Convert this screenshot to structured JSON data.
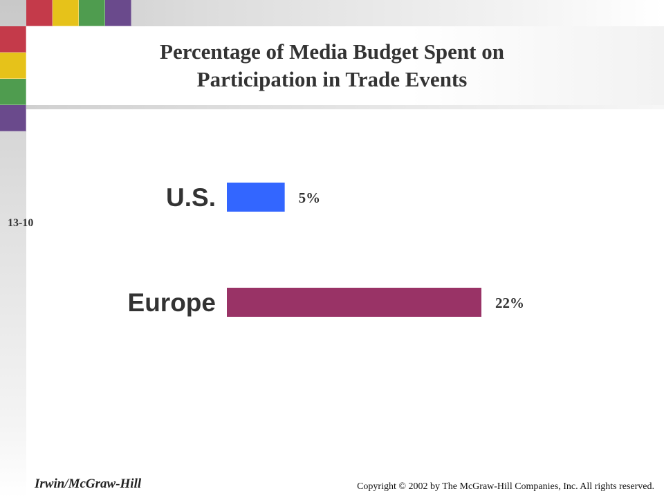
{
  "slide": {
    "title_line1": "Percentage of Media Budget Spent on",
    "title_line2": "Participation in Trade Events",
    "number": "13-10",
    "footer_left": "Irwin/McGraw-Hill",
    "footer_right": "Copyright © 2002 by The McGraw-Hill Companies, Inc.  All rights reserved."
  },
  "colors": {
    "accent_red": "#c43a4a",
    "accent_yellow": "#e6c21a",
    "accent_green": "#4f9c4f",
    "accent_purple": "#6a4a8c",
    "us_bar": "#3366ff",
    "europe_bar": "#993366"
  },
  "chart_data": {
    "type": "bar",
    "orientation": "horizontal",
    "title": "Percentage of Media Budget Spent on Participation in Trade Events",
    "categories": [
      "U.S.",
      "Europe"
    ],
    "values": [
      5,
      22
    ],
    "value_labels": [
      "5%",
      "22%"
    ],
    "unit": "%",
    "xlim": [
      0,
      22
    ],
    "grid": false,
    "legend": "none"
  }
}
